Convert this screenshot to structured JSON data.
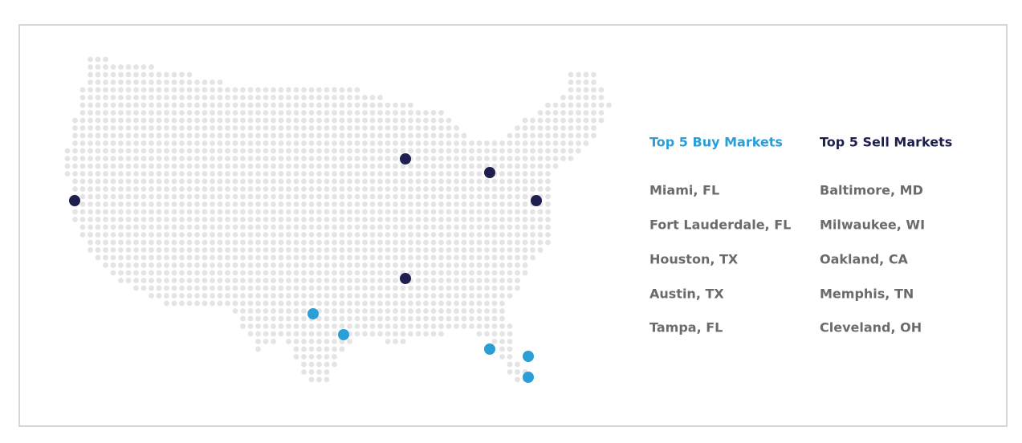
{
  "buy_markets": {
    "title": "Top 5 Buy Markets",
    "items": [
      "Miami, FL",
      "Fort Lauderdale, FL",
      "Houston, TX",
      "Austin, TX",
      "Tampa, FL"
    ]
  },
  "sell_markets": {
    "title": "Top 5 Sell Markets",
    "items": [
      "Baltimore, MD",
      "Milwaukee, WI",
      "Oakland, CA",
      "Memphis, TN",
      "Cleveland, OH"
    ]
  }
}
